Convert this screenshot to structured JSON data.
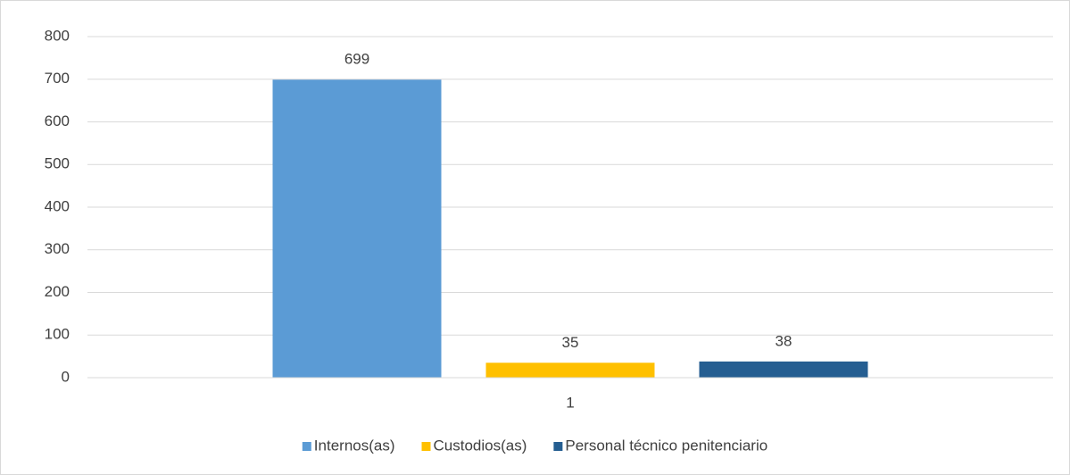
{
  "chart_data": {
    "type": "bar",
    "categories": [
      "1"
    ],
    "series": [
      {
        "name": "Internos(as)",
        "color": "#5b9bd5",
        "values": [
          699
        ]
      },
      {
        "name": "Custodios(as)",
        "color": "#ffc000",
        "values": [
          35
        ]
      },
      {
        "name": "Personal técnico penitenciario",
        "color": "#255e91",
        "values": [
          38
        ]
      }
    ],
    "ylim": [
      0,
      800
    ],
    "yticks": [
      0,
      100,
      200,
      300,
      400,
      500,
      600,
      700,
      800
    ],
    "grid": true,
    "legend": "bottom",
    "data_labels": true
  }
}
